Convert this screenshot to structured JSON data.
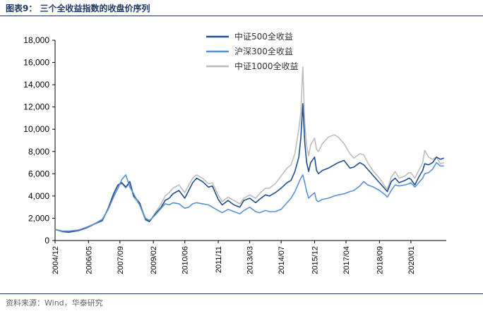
{
  "figure": {
    "title": "图表9：  三个全收益指数的收盘价序列",
    "source": "资料来源：Wind，华泰研究"
  },
  "chart_data": {
    "type": "line",
    "title": "图表9：  三个全收益指数的收盘价序列",
    "xlabel": "",
    "ylabel": "",
    "ylim": [
      0,
      18000
    ],
    "yticks": [
      0,
      2000,
      4000,
      6000,
      8000,
      10000,
      12000,
      14000,
      16000,
      18000
    ],
    "ytick_labels": [
      "0",
      "2,000",
      "4,000",
      "6,000",
      "8,000",
      "10,000",
      "12,000",
      "14,000",
      "16,000",
      "18,000"
    ],
    "xlim": [
      2004.917,
      2021.5
    ],
    "xticks": [
      2004.917,
      2006.333,
      2007.667,
      2009.083,
      2010.417,
      2011.833,
      2013.167,
      2014.5,
      2015.917,
      2017.25,
      2018.667,
      2020.0
    ],
    "xtick_labels": [
      "2004/12",
      "2006/05",
      "2007/09",
      "2009/02",
      "2010/06",
      "2011/11",
      "2013/03",
      "2014/07",
      "2015/12",
      "2017/04",
      "2018/09",
      "2020/01"
    ],
    "grid": false,
    "legend_position": "top-center",
    "series": [
      {
        "name": "中证500全收益",
        "color": "#1f4e8c",
        "x": [
          2004.917,
          2005.25,
          2005.5,
          2005.917,
          2006.25,
          2006.583,
          2006.917,
          2007.167,
          2007.417,
          2007.583,
          2007.75,
          2007.917,
          2008.083,
          2008.25,
          2008.5,
          2008.75,
          2008.917,
          2009.167,
          2009.417,
          2009.583,
          2009.75,
          2009.917,
          2010.167,
          2010.417,
          2010.583,
          2010.75,
          2010.917,
          2011.167,
          2011.417,
          2011.583,
          2011.833,
          2012.0,
          2012.25,
          2012.5,
          2012.75,
          2012.917,
          2013.167,
          2013.417,
          2013.583,
          2013.833,
          2014.0,
          2014.25,
          2014.5,
          2014.75,
          2014.917,
          2015.083,
          2015.25,
          2015.333,
          2015.417,
          2015.5,
          2015.583,
          2015.667,
          2015.75,
          2015.917,
          2016.0,
          2016.083,
          2016.25,
          2016.5,
          2016.75,
          2016.917,
          2017.167,
          2017.417,
          2017.583,
          2017.833,
          2018.0,
          2018.167,
          2018.417,
          2018.667,
          2018.917,
          2019.0,
          2019.167,
          2019.333,
          2019.5,
          2019.75,
          2019.917,
          2020.0,
          2020.167,
          2020.333,
          2020.5,
          2020.583,
          2020.75,
          2020.917,
          2021.083,
          2021.25,
          2021.4
        ],
        "values": [
          1000,
          800,
          750,
          900,
          1150,
          1500,
          1800,
          2900,
          4300,
          5000,
          5200,
          4800,
          5300,
          4000,
          3400,
          1900,
          1700,
          2400,
          3000,
          3600,
          3800,
          4200,
          4500,
          3800,
          4500,
          5200,
          5600,
          5300,
          4800,
          4900,
          3700,
          3200,
          3600,
          3200,
          3000,
          3600,
          3800,
          3400,
          3700,
          4100,
          4000,
          4300,
          4700,
          5200,
          5400,
          6200,
          7500,
          9200,
          12300,
          8800,
          7000,
          6200,
          7000,
          7500,
          6300,
          6000,
          6300,
          6500,
          6800,
          7000,
          7200,
          6500,
          6600,
          7000,
          6800,
          6400,
          5800,
          5200,
          4600,
          4400,
          5300,
          5600,
          5200,
          5400,
          5600,
          5500,
          5000,
          5700,
          6300,
          6900,
          6800,
          7000,
          7500,
          7300,
          7400
        ]
      },
      {
        "name": "沪深300全收益",
        "color": "#5b8fd6",
        "x": [
          2004.917,
          2005.25,
          2005.5,
          2005.917,
          2006.25,
          2006.583,
          2006.917,
          2007.167,
          2007.417,
          2007.583,
          2007.75,
          2007.917,
          2008.083,
          2008.25,
          2008.5,
          2008.75,
          2008.917,
          2009.167,
          2009.417,
          2009.583,
          2009.75,
          2009.917,
          2010.167,
          2010.417,
          2010.583,
          2010.75,
          2010.917,
          2011.167,
          2011.417,
          2011.583,
          2011.833,
          2012.0,
          2012.25,
          2012.5,
          2012.75,
          2012.917,
          2013.167,
          2013.417,
          2013.583,
          2013.833,
          2014.0,
          2014.25,
          2014.5,
          2014.75,
          2014.917,
          2015.083,
          2015.25,
          2015.333,
          2015.417,
          2015.5,
          2015.583,
          2015.667,
          2015.75,
          2015.917,
          2016.0,
          2016.083,
          2016.25,
          2016.5,
          2016.75,
          2016.917,
          2017.167,
          2017.417,
          2017.583,
          2017.833,
          2018.0,
          2018.167,
          2018.417,
          2018.667,
          2018.917,
          2019.0,
          2019.167,
          2019.333,
          2019.5,
          2019.75,
          2019.917,
          2020.0,
          2020.167,
          2020.333,
          2020.5,
          2020.583,
          2020.75,
          2020.917,
          2021.083,
          2021.25,
          2021.4
        ],
        "values": [
          1000,
          850,
          850,
          950,
          1200,
          1500,
          1900,
          2800,
          4000,
          4700,
          5500,
          5900,
          4800,
          4200,
          3200,
          2000,
          1800,
          2300,
          2900,
          3300,
          3200,
          3400,
          3300,
          2900,
          3000,
          3300,
          3400,
          3300,
          3200,
          3000,
          2700,
          2500,
          2800,
          2600,
          2400,
          2700,
          3000,
          2600,
          2500,
          2700,
          2600,
          2600,
          2800,
          3400,
          3800,
          4400,
          5200,
          5600,
          5900,
          5200,
          4400,
          3800,
          4000,
          4300,
          3600,
          3500,
          3700,
          3800,
          4000,
          4100,
          4200,
          4400,
          4500,
          4900,
          5300,
          5000,
          4800,
          4500,
          4100,
          3900,
          4500,
          5000,
          4900,
          5000,
          5100,
          5200,
          4800,
          5200,
          5600,
          6000,
          6100,
          6400,
          7000,
          6700,
          6700
        ]
      },
      {
        "name": "中证1000全收益",
        "color": "#bdbdbd",
        "x": [
          2004.917,
          2005.25,
          2005.5,
          2005.917,
          2006.25,
          2006.583,
          2006.917,
          2007.167,
          2007.417,
          2007.583,
          2007.75,
          2007.917,
          2008.083,
          2008.25,
          2008.5,
          2008.75,
          2008.917,
          2009.167,
          2009.417,
          2009.583,
          2009.75,
          2009.917,
          2010.167,
          2010.417,
          2010.583,
          2010.75,
          2010.917,
          2011.167,
          2011.417,
          2011.583,
          2011.833,
          2012.0,
          2012.25,
          2012.5,
          2012.75,
          2012.917,
          2013.167,
          2013.417,
          2013.583,
          2013.833,
          2014.0,
          2014.25,
          2014.5,
          2014.75,
          2014.917,
          2015.083,
          2015.25,
          2015.333,
          2015.417,
          2015.5,
          2015.583,
          2015.667,
          2015.75,
          2015.917,
          2016.0,
          2016.083,
          2016.25,
          2016.5,
          2016.75,
          2016.917,
          2017.167,
          2017.417,
          2017.583,
          2017.833,
          2018.0,
          2018.167,
          2018.417,
          2018.667,
          2018.917,
          2019.0,
          2019.167,
          2019.333,
          2019.5,
          2019.75,
          2019.917,
          2020.0,
          2020.167,
          2020.333,
          2020.5,
          2020.583,
          2020.75,
          2020.917,
          2021.083,
          2021.25,
          2021.4
        ],
        "values": [
          1000,
          800,
          750,
          880,
          1100,
          1450,
          1750,
          2800,
          4200,
          4900,
          5100,
          4700,
          5200,
          3900,
          3200,
          1800,
          1700,
          2500,
          3300,
          4000,
          4300,
          4700,
          5000,
          4300,
          5000,
          5600,
          5900,
          5600,
          5100,
          5200,
          4100,
          3500,
          3900,
          3600,
          3300,
          3800,
          4100,
          3800,
          4200,
          4700,
          4700,
          5100,
          5800,
          6500,
          6800,
          7800,
          10000,
          11500,
          15600,
          10500,
          8500,
          7600,
          8600,
          9200,
          8200,
          8000,
          8700,
          9300,
          9500,
          9300,
          8700,
          7800,
          7400,
          7800,
          7700,
          7000,
          6200,
          5600,
          4800,
          4600,
          5700,
          6200,
          5600,
          5800,
          6100,
          6100,
          5600,
          6300,
          7000,
          8100,
          7500,
          7300,
          7500,
          6900,
          7000
        ]
      }
    ]
  }
}
